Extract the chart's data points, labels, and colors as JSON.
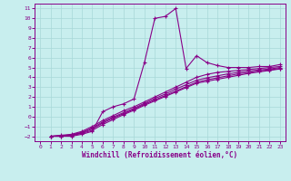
{
  "xlabel": "Windchill (Refroidissement éolien,°C)",
  "bg_color": "#c8eeee",
  "grid_color": "#a8d8d8",
  "line_color": "#880088",
  "xlim": [
    -0.5,
    23.5
  ],
  "ylim": [
    -2.5,
    11.5
  ],
  "xticks": [
    0,
    1,
    2,
    3,
    4,
    5,
    6,
    7,
    8,
    9,
    10,
    11,
    12,
    13,
    14,
    15,
    16,
    17,
    18,
    19,
    20,
    21,
    22,
    23
  ],
  "yticks": [
    -2,
    -1,
    0,
    1,
    2,
    3,
    4,
    5,
    6,
    7,
    8,
    9,
    10,
    11
  ],
  "series": [
    {
      "x": [
        1,
        2,
        3,
        4,
        5,
        6,
        7,
        8,
        9,
        10,
        11,
        12,
        13,
        14,
        15,
        16,
        17,
        18,
        19,
        20,
        21,
        22,
        23
      ],
      "y": [
        -2,
        -2,
        -2,
        -1.8,
        -1.5,
        0.5,
        1.0,
        1.3,
        1.8,
        5.5,
        10.0,
        10.2,
        11.0,
        4.9,
        6.2,
        5.5,
        5.2,
        5.0,
        5.0,
        5.0,
        5.1,
        5.1,
        5.3
      ]
    },
    {
      "x": [
        1,
        2,
        3,
        4,
        5,
        6,
        7,
        8,
        9,
        10,
        11,
        12,
        13,
        14,
        15,
        16,
        17,
        18,
        19,
        20,
        21,
        22,
        23
      ],
      "y": [
        -2,
        -1.9,
        -1.8,
        -1.5,
        -1.0,
        -0.4,
        0.1,
        0.6,
        1.0,
        1.5,
        2.0,
        2.5,
        3.0,
        3.5,
        4.0,
        4.3,
        4.5,
        4.6,
        4.7,
        4.8,
        4.9,
        5.0,
        5.1
      ]
    },
    {
      "x": [
        1,
        2,
        3,
        4,
        5,
        6,
        7,
        8,
        9,
        10,
        11,
        12,
        13,
        14,
        15,
        16,
        17,
        18,
        19,
        20,
        21,
        22,
        23
      ],
      "y": [
        -2,
        -1.95,
        -1.85,
        -1.6,
        -1.15,
        -0.55,
        -0.05,
        0.4,
        0.85,
        1.35,
        1.85,
        2.3,
        2.8,
        3.25,
        3.7,
        3.95,
        4.15,
        4.35,
        4.5,
        4.65,
        4.75,
        4.85,
        5.0
      ]
    },
    {
      "x": [
        1,
        2,
        3,
        4,
        5,
        6,
        7,
        8,
        9,
        10,
        11,
        12,
        13,
        14,
        15,
        16,
        17,
        18,
        19,
        20,
        21,
        22,
        23
      ],
      "y": [
        -2,
        -1.95,
        -1.9,
        -1.65,
        -1.25,
        -0.65,
        -0.15,
        0.3,
        0.75,
        1.25,
        1.7,
        2.15,
        2.6,
        3.05,
        3.5,
        3.75,
        3.95,
        4.15,
        4.35,
        4.5,
        4.65,
        4.75,
        4.9
      ]
    },
    {
      "x": [
        1,
        2,
        3,
        4,
        5,
        6,
        7,
        8,
        9,
        10,
        11,
        12,
        13,
        14,
        15,
        16,
        17,
        18,
        19,
        20,
        21,
        22,
        23
      ],
      "y": [
        -2,
        -2,
        -1.95,
        -1.7,
        -1.4,
        -0.8,
        -0.3,
        0.2,
        0.65,
        1.15,
        1.6,
        2.05,
        2.5,
        2.95,
        3.4,
        3.6,
        3.8,
        4.0,
        4.2,
        4.4,
        4.55,
        4.7,
        4.85
      ]
    }
  ]
}
